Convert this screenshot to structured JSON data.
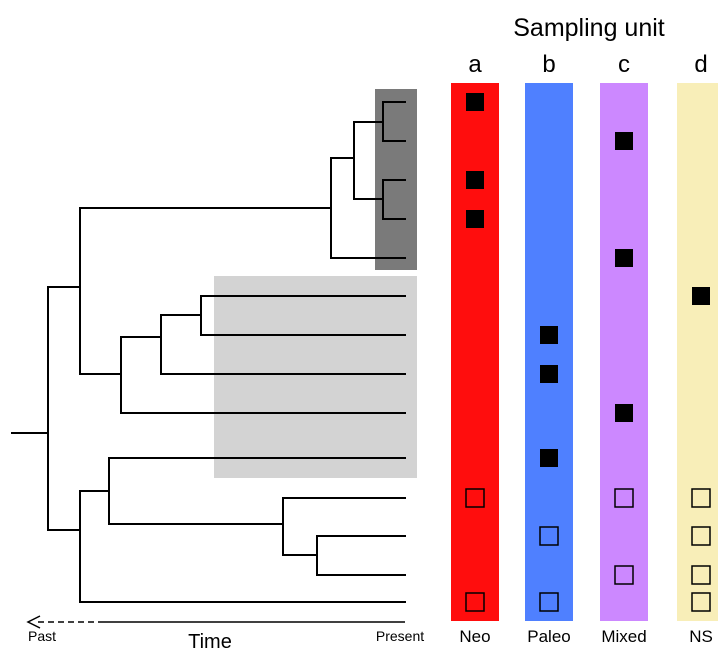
{
  "title": "Sampling unit",
  "axis": {
    "label": "Time",
    "past_label": "Past",
    "present_label": "Present"
  },
  "columns": [
    {
      "letter": "a",
      "name": "Neo",
      "color": "#ff0d0d",
      "marks": [
        {
          "tip": 1,
          "filled": true
        },
        {
          "tip": 3,
          "filled": true
        },
        {
          "tip": 4,
          "filled": true
        },
        {
          "tip": 11,
          "filled": false
        },
        {
          "tip": 14,
          "filled": false
        }
      ]
    },
    {
      "letter": "b",
      "name": "Paleo",
      "color": "#4f80ff",
      "marks": [
        {
          "tip": 7,
          "filled": true
        },
        {
          "tip": 8,
          "filled": true
        },
        {
          "tip": 10,
          "filled": true
        },
        {
          "tip": 12,
          "filled": false
        },
        {
          "tip": 14,
          "filled": false
        }
      ]
    },
    {
      "letter": "c",
      "name": "Mixed",
      "color": "#cc88ff",
      "marks": [
        {
          "tip": 2,
          "filled": true
        },
        {
          "tip": 5,
          "filled": true
        },
        {
          "tip": 9,
          "filled": true
        },
        {
          "tip": 11,
          "filled": false
        },
        {
          "tip": 13,
          "filled": false
        }
      ]
    },
    {
      "letter": "d",
      "name": "NS",
      "color": "#f8eeb8",
      "marks": [
        {
          "tip": 6,
          "filled": true
        },
        {
          "tip": 11,
          "filled": false
        },
        {
          "tip": 12,
          "filled": false
        },
        {
          "tip": 13,
          "filled": false
        },
        {
          "tip": 14,
          "filled": false
        }
      ]
    }
  ],
  "highlight_colors": {
    "dark": "#7a7a7a",
    "light": "#d3d3d3"
  }
}
